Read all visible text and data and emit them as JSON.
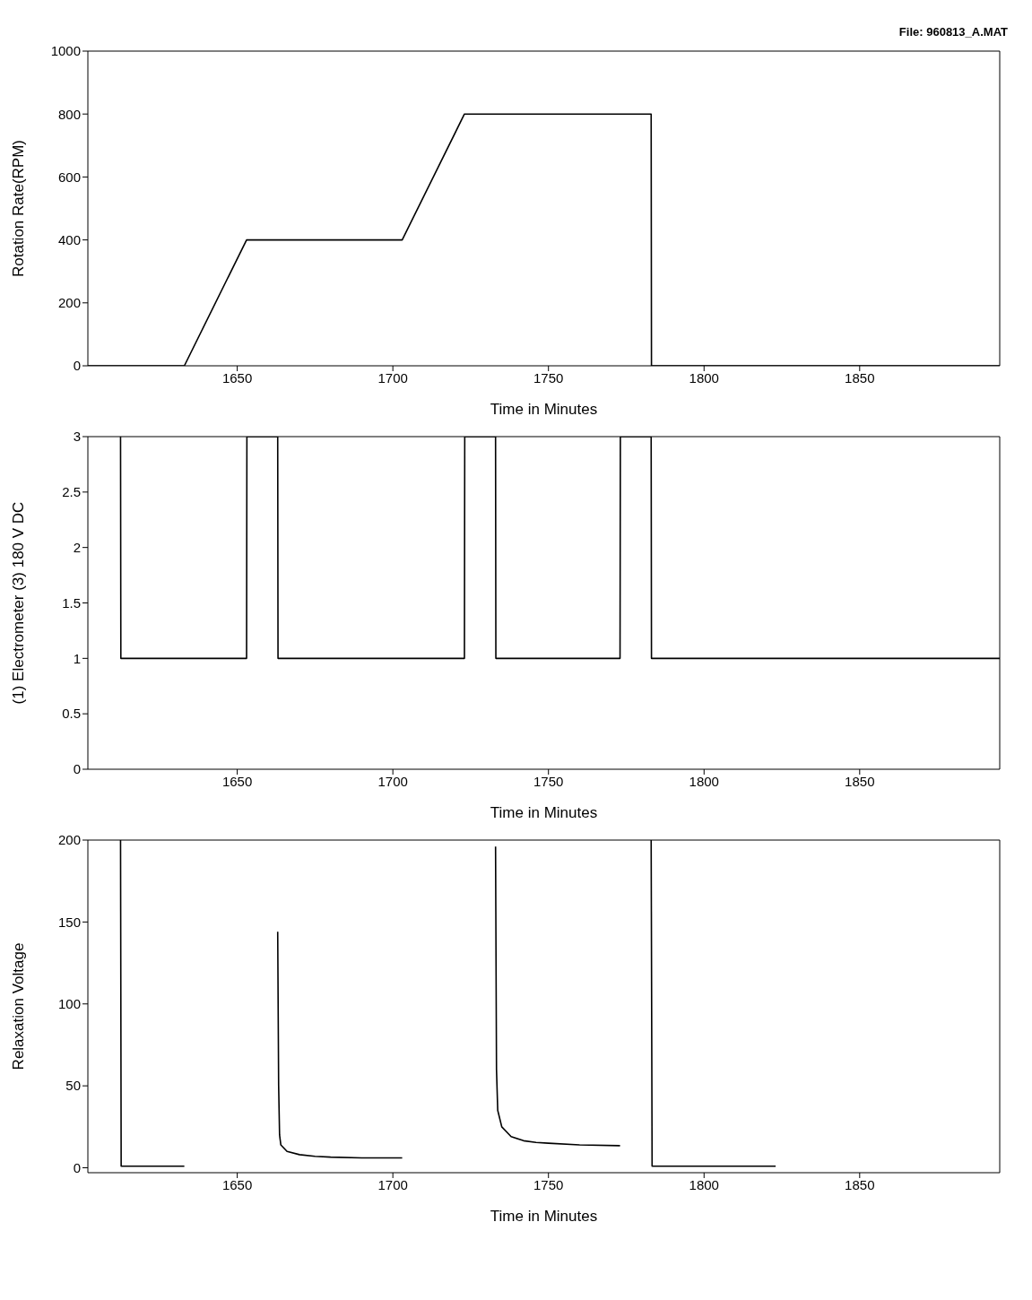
{
  "chart_data": [
    {
      "type": "line",
      "annotations": [
        "File: 960813_A.MAT"
      ],
      "xlabel": "Time in Minutes",
      "ylabel": "Rotation Rate(RPM)",
      "xlim": [
        1602,
        1895
      ],
      "xticks": [
        1650,
        1700,
        1750,
        1800,
        1850
      ],
      "ylim": [
        0,
        1000
      ],
      "yticks": [
        0,
        200,
        400,
        600,
        800,
        1000
      ],
      "line_style": "solid",
      "marker": "none",
      "series": [
        {
          "color": "#000000",
          "x": [
            1602,
            1633,
            1653,
            1703,
            1723,
            1783,
            1783.1,
            1895
          ],
          "values": [
            0,
            0,
            400,
            400,
            800,
            800,
            0,
            0
          ]
        }
      ]
    },
    {
      "type": "line",
      "xlabel": "Time in Minutes",
      "ylabel": "(1) Electrometer (3) 180 V DC",
      "xlim": [
        1602,
        1895
      ],
      "xticks": [
        1650,
        1700,
        1750,
        1800,
        1850
      ],
      "ylim": [
        0,
        3
      ],
      "yticks": [
        0,
        0.5,
        1,
        1.5,
        2,
        2.5,
        3
      ],
      "line_style": "solid",
      "marker": "none",
      "series": [
        {
          "color": "#000000",
          "x": [
            1612.5,
            1612.6,
            1653,
            1653.1,
            1663,
            1663.1,
            1723,
            1723.1,
            1733,
            1733.1,
            1773,
            1773.1,
            1783,
            1783.1,
            1895
          ],
          "values": [
            3,
            1,
            1,
            3,
            3,
            1,
            1,
            3,
            3,
            1,
            1,
            3,
            3,
            1,
            1
          ]
        }
      ]
    },
    {
      "type": "line",
      "xlabel": "Time in Minutes",
      "ylabel": "Relaxation Voltage",
      "xlim": [
        1602,
        1895
      ],
      "xticks": [
        1650,
        1700,
        1750,
        1800,
        1850
      ],
      "ylim": [
        -3,
        200
      ],
      "yticks": [
        0,
        50,
        100,
        150,
        200
      ],
      "line_style": "solid",
      "marker": "none",
      "series": [
        {
          "color": "#000000",
          "x": [
            1612.5,
            1612.7,
            1633,
            1648,
            1663,
            1663.3,
            1663.6,
            1664,
            1666,
            1670,
            1675,
            1680,
            1690,
            1703,
            1718,
            1733,
            1733.3,
            1733.7,
            1735,
            1738,
            1742,
            1746,
            1750,
            1760,
            1773,
            1778,
            1783,
            1783.3,
            1823
          ],
          "values": [
            200,
            1,
            1,
            null,
            144,
            50,
            20,
            14,
            10,
            8,
            7,
            6.5,
            6,
            6,
            null,
            196,
            60,
            35,
            25,
            19,
            16.5,
            15.5,
            15,
            14,
            13.5,
            null,
            200,
            1,
            1
          ]
        }
      ]
    }
  ]
}
